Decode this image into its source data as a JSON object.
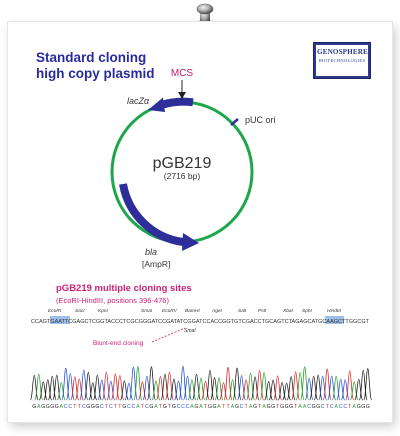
{
  "title": {
    "line1": "Standard cloning",
    "line2": "high copy plasmid"
  },
  "logo": {
    "name": "GENOSPHERE",
    "sub": "BIOTECHNOLOGIES"
  },
  "plasmid": {
    "name": "pGB219",
    "size": "(2716 bp)",
    "mcs_label": "MCS",
    "features": {
      "lacz": "lacZα",
      "puc": "pUC ori",
      "bla": "bla",
      "ampr": "[AmpR]"
    }
  },
  "cloning_sites": {
    "title": "pGB219 multiple cloning sites",
    "subtitle": "(EcoRI-HindIII, positions 396-476)",
    "enzymes": [
      "EcoRI",
      "SacI",
      "KpnI",
      "SmaI",
      "EcoRV",
      "BamHI",
      "AgeI",
      "SalI",
      "PstI",
      "XbaI",
      "SphI",
      "HindIII"
    ],
    "sequence": "CCAGTGAATTCGAGCTCGGTACCCTCGCGGGATCCGATATCGGATCCACCGGTGTCGACCTGCAGTCTAGAGCATGCAAGCTTGGCGT",
    "secondary_enzyme": "SmaI",
    "blunt_label": "Blunt-end cloning"
  },
  "chromatogram": {
    "bases": "GAGGGGACCTTCGGGCTCTTGCCATCGATGTGCCCAGATGGATTAGCTAGTAGGTGGGTAACGGCTCACCTAGGG",
    "colors": {
      "A": "#2aa02a",
      "C": "#2a52d8",
      "G": "#222222",
      "T": "#d62a2a"
    }
  },
  "colors": {
    "backbone": "#1ea64a",
    "feature": "#2e2e9a",
    "title": "#2a2aa0",
    "mcs": "#c01a6a",
    "pink": "#cc2277",
    "highlight": "#9ec0ea"
  }
}
